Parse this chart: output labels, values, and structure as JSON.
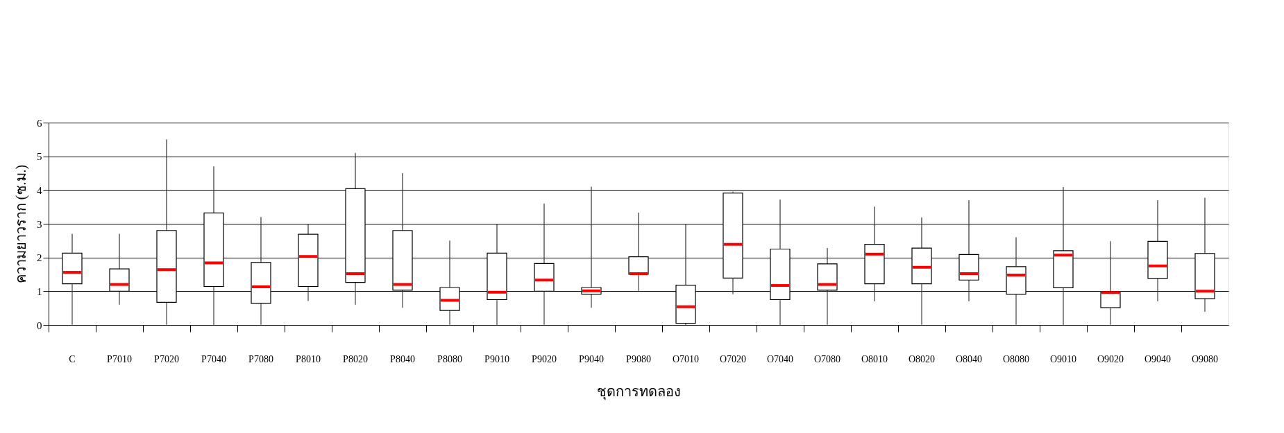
{
  "chart_data": {
    "type": "box",
    "xlabel": "ชุดการทดลอง",
    "ylabel": "ความยาวราก (ซ.ม.)",
    "categories": [
      "C",
      "P7010",
      "P7020",
      "P7040",
      "P7080",
      "P8010",
      "P8020",
      "P8040",
      "P8080",
      "P9010",
      "P9020",
      "P9040",
      "P9080",
      "O7010",
      "O7020",
      "O7040",
      "O7080",
      "O8010",
      "O8020",
      "O8040",
      "O8080",
      "O9010",
      "O9020",
      "O9040",
      "O9080"
    ],
    "ylim": [
      0,
      6
    ],
    "yticks": [
      0,
      1,
      2,
      3,
      4,
      5,
      6
    ],
    "grid": "y",
    "series": [
      {
        "color": "#ffffff",
        "boxes": [
          {
            "low": 0,
            "q1": 1.22,
            "median": 1.56,
            "q3": 2.13,
            "high": 2.7
          },
          {
            "low": 0.6,
            "q1": 1.0,
            "median": 1.2,
            "q3": 1.66,
            "high": 2.7
          },
          {
            "low": 0,
            "q1": 0.67,
            "median": 1.64,
            "q3": 2.8,
            "high": 5.5
          },
          {
            "low": 0,
            "q1": 1.14,
            "median": 1.84,
            "q3": 3.32,
            "high": 4.7
          },
          {
            "low": 0,
            "q1": 0.64,
            "median": 1.13,
            "q3": 1.85,
            "high": 3.2
          },
          {
            "low": 0.71,
            "q1": 1.14,
            "median": 2.03,
            "q3": 2.69,
            "high": 3.0
          },
          {
            "low": 0.6,
            "q1": 1.26,
            "median": 1.52,
            "q3": 4.04,
            "high": 5.1
          },
          {
            "low": 0.51,
            "q1": 1.03,
            "median": 1.2,
            "q3": 2.8,
            "high": 4.5
          },
          {
            "low": 0,
            "q1": 0.43,
            "median": 0.73,
            "q3": 1.11,
            "high": 2.5
          },
          {
            "low": 0,
            "q1": 0.75,
            "median": 0.97,
            "q3": 2.13,
            "high": 3.0
          },
          {
            "low": 0,
            "q1": 1.0,
            "median": 1.33,
            "q3": 1.82,
            "high": 3.6
          },
          {
            "low": 0.51,
            "q1": 0.91,
            "median": 1.01,
            "q3": 1.11,
            "high": 4.1
          },
          {
            "low": 1.0,
            "q1": 1.5,
            "median": 1.52,
            "q3": 2.02,
            "high": 3.33
          },
          {
            "low": 0,
            "q1": 0.05,
            "median": 0.54,
            "q3": 1.18,
            "high": 3.0
          },
          {
            "low": 0.91,
            "q1": 1.39,
            "median": 2.39,
            "q3": 3.91,
            "high": 3.95
          },
          {
            "low": 0,
            "q1": 0.75,
            "median": 1.17,
            "q3": 2.25,
            "high": 3.72
          },
          {
            "low": 0,
            "q1": 1.03,
            "median": 1.2,
            "q3": 1.81,
            "high": 2.28
          },
          {
            "low": 0.7,
            "q1": 1.22,
            "median": 2.1,
            "q3": 2.39,
            "high": 3.51
          },
          {
            "low": 0,
            "q1": 1.22,
            "median": 1.71,
            "q3": 2.28,
            "high": 3.19
          },
          {
            "low": 0.7,
            "q1": 1.33,
            "median": 1.52,
            "q3": 2.09,
            "high": 3.7
          },
          {
            "low": 0,
            "q1": 0.91,
            "median": 1.48,
            "q3": 1.73,
            "high": 2.6
          },
          {
            "low": 0,
            "q1": 1.1,
            "median": 2.07,
            "q3": 2.2,
            "high": 4.09
          },
          {
            "low": 0,
            "q1": 0.51,
            "median": 0.96,
            "q3": 0.96,
            "high": 2.48
          },
          {
            "low": 0.7,
            "q1": 1.38,
            "median": 1.75,
            "q3": 2.48,
            "high": 3.7
          },
          {
            "low": 0.39,
            "q1": 0.78,
            "median": 1.0,
            "q3": 2.12,
            "high": 3.77
          }
        ]
      }
    ]
  }
}
